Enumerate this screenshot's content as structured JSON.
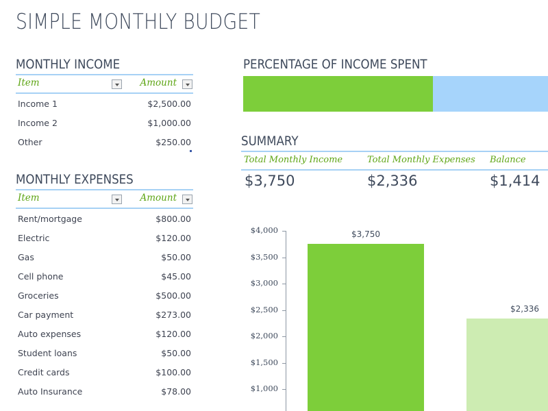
{
  "title": "SIMPLE MONTHLY BUDGET",
  "income": {
    "heading": "MONTHLY INCOME",
    "columns": {
      "item": "Item",
      "amount": "Amount"
    },
    "rows": [
      {
        "item": "Income 1",
        "amount": "$2,500.00"
      },
      {
        "item": "Income 2",
        "amount": "$1,000.00"
      },
      {
        "item": "Other",
        "amount": "$250.00"
      }
    ]
  },
  "expenses": {
    "heading": "MONTHLY EXPENSES",
    "columns": {
      "item": "Item",
      "amount": "Amount"
    },
    "rows": [
      {
        "item": "Rent/mortgage",
        "amount": "$800.00"
      },
      {
        "item": "Electric",
        "amount": "$120.00"
      },
      {
        "item": "Gas",
        "amount": "$50.00"
      },
      {
        "item": "Cell phone",
        "amount": "$45.00"
      },
      {
        "item": "Groceries",
        "amount": "$500.00"
      },
      {
        "item": "Car payment",
        "amount": "$273.00"
      },
      {
        "item": "Auto expenses",
        "amount": "$120.00"
      },
      {
        "item": "Student loans",
        "amount": "$50.00"
      },
      {
        "item": "Credit cards",
        "amount": "$100.00"
      },
      {
        "item": "Auto Insurance",
        "amount": "$78.00"
      }
    ]
  },
  "percent_spent": {
    "heading": "PERCENTAGE OF INCOME SPENT",
    "fill_color": "#7dce3a",
    "track_color": "#a6d4fb"
  },
  "summary": {
    "heading": "SUMMARY",
    "labels": {
      "income": "Total Monthly Income",
      "expenses": "Total Monthly Expenses",
      "balance": "Balance"
    },
    "values": {
      "income": "$3,750",
      "expenses": "$2,336",
      "balance": "$1,414"
    }
  },
  "colors": {
    "accent_green": "#5ea515",
    "rule_blue": "#a6d1f5",
    "bar_income": "#7dce3a",
    "bar_expenses": "#cdecb2"
  },
  "chart_data": {
    "type": "bar",
    "categories": [
      "Total Monthly Income",
      "Total Monthly Expenses"
    ],
    "values": [
      3750,
      2336
    ],
    "data_labels": [
      "$3,750",
      "$2,336"
    ],
    "y_ticks": [
      "$4,000",
      "$3,500",
      "$3,000",
      "$2,500",
      "$2,000",
      "$1,500",
      "$1,000"
    ],
    "ylim": [
      0,
      4000
    ],
    "title": "",
    "xlabel": "",
    "ylabel": "",
    "grid": false
  }
}
